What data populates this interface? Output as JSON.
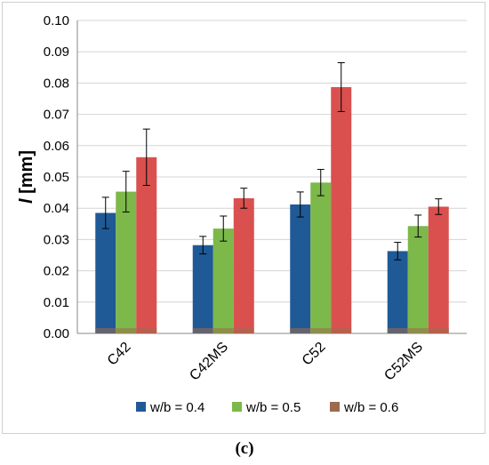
{
  "chart_data": {
    "type": "bar",
    "categories": [
      "C42",
      "C42MS",
      "C52",
      "C52MS"
    ],
    "series": [
      {
        "name": "w/b = 0.4",
        "color": "#1f5a96",
        "values": [
          0.0385,
          0.0282,
          0.0412,
          0.0263
        ],
        "errors": [
          0.005,
          0.0028,
          0.004,
          0.0028
        ]
      },
      {
        "name": "w/b = 0.5",
        "color": "#7db84a",
        "values": [
          0.0453,
          0.0335,
          0.0482,
          0.0343
        ],
        "errors": [
          0.0065,
          0.004,
          0.0042,
          0.0035
        ]
      },
      {
        "name": "w/b = 0.6",
        "color": "#d9504f",
        "values": [
          0.0563,
          0.0432,
          0.0787,
          0.0405
        ],
        "errors": [
          0.009,
          0.0032,
          0.0078,
          0.0025
        ]
      }
    ],
    "legend_swatch_colors": [
      "#1f5a96",
      "#7db84a",
      "#9c6b4e"
    ],
    "ylabel_italic": "l",
    "ylabel_rest": " [mm]",
    "ylim": [
      0,
      0.1
    ],
    "yticks": [
      "0.00",
      "0.01",
      "0.02",
      "0.03",
      "0.04",
      "0.05",
      "0.06",
      "0.07",
      "0.08",
      "0.09",
      "0.10"
    ],
    "grid": true,
    "legend_position": "bottom"
  },
  "caption": "(c)"
}
